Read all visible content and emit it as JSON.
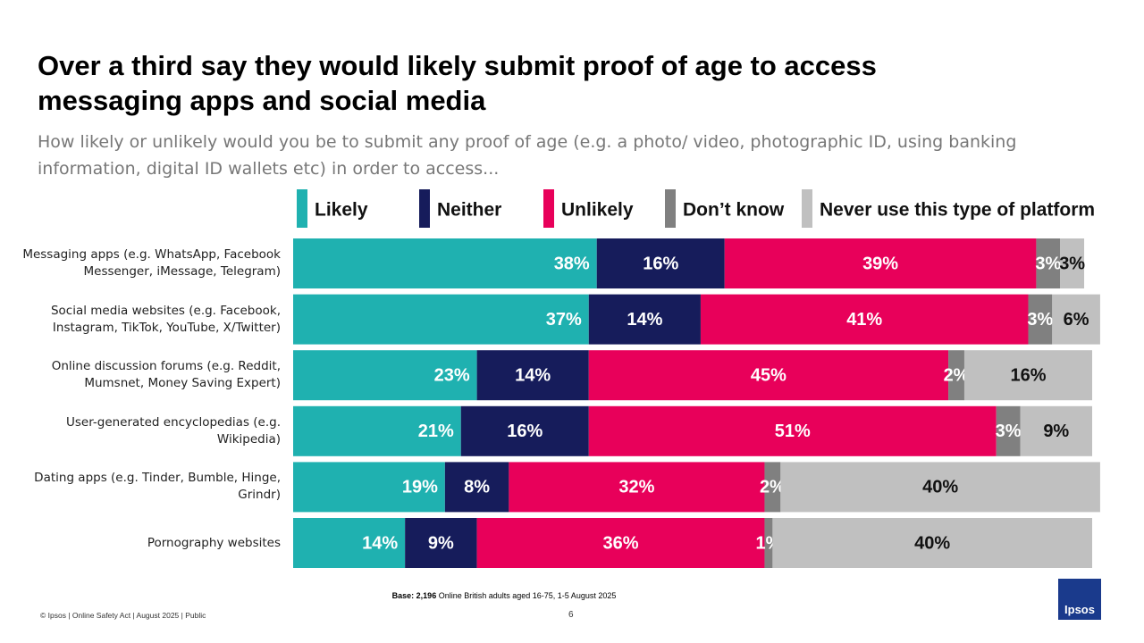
{
  "chart_data": {
    "type": "stacked-bar-horizontal",
    "title": "Over a third say they would likely submit proof of age to access messaging apps and social media",
    "subtitle": "How likely or unlikely would you be to submit any proof of age (e.g. a photo/ video, photographic ID, using banking information, digital ID wallets etc) in order to access...",
    "categories": [
      "Messaging apps (e.g. WhatsApp, Facebook Messenger, iMessage, Telegram)",
      "Social media websites (e.g. Facebook, Instagram, TikTok, YouTube, X/Twitter)",
      "Online discussion forums (e.g. Reddit, Mumsnet, Money Saving Expert)",
      "User-generated encyclopedias (e.g. Wikipedia)",
      "Dating apps (e.g. Tinder, Bumble, Hinge, Grindr)",
      "Pornography websites"
    ],
    "xlim": [
      0,
      100
    ],
    "legend": "top",
    "series": [
      {
        "name": "Likely",
        "color": "#1fb1b0",
        "label_color": "#ffffff",
        "values": [
          38,
          37,
          23,
          21,
          19,
          14
        ],
        "value_labels": [
          "38%",
          "37%",
          "23%",
          "21%",
          "19%",
          "14%"
        ]
      },
      {
        "name": "Neither",
        "color": "#161c5b",
        "label_color": "#ffffff",
        "values": [
          16,
          14,
          14,
          16,
          8,
          9
        ],
        "value_labels": [
          "16%",
          "14%",
          "14%",
          "16%",
          "8%",
          "9%"
        ]
      },
      {
        "name": "Unlikely",
        "color": "#e8005a",
        "label_color": "#ffffff",
        "values": [
          39,
          41,
          45,
          51,
          32,
          36
        ],
        "value_labels": [
          "39%",
          "41%",
          "45%",
          "51%",
          "32%",
          "36%"
        ]
      },
      {
        "name": "Don’t know",
        "color": "#808080",
        "label_color": "#ffffff",
        "values": [
          3,
          3,
          2,
          3,
          2,
          1
        ],
        "value_labels": [
          "3%",
          "3%",
          "2%",
          "3%",
          "2%",
          "1%"
        ]
      },
      {
        "name": "Never use this type of platform",
        "color": "#c0c0c0",
        "label_color": "#111111",
        "values": [
          3,
          6,
          16,
          9,
          40,
          40
        ],
        "value_labels": [
          "3%",
          "6%",
          "16%",
          "9%",
          "40%",
          "40%"
        ]
      }
    ]
  },
  "footer": {
    "base_label": "Base:",
    "base_n": "2,196",
    "base_text": "Online British adults aged 16-75, 1-5 August 2025",
    "copyright": "© Ipsos | Online Safety Act | August 2025 | Public",
    "page": "6",
    "logo": "Ipsos"
  }
}
